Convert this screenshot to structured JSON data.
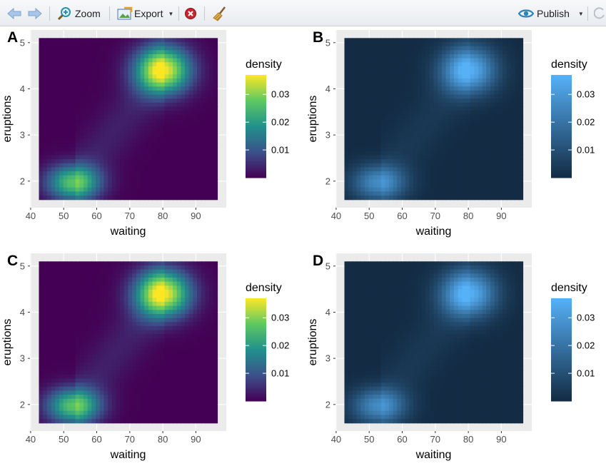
{
  "toolbar": {
    "zoom_label": "Zoom",
    "export_label": "Export",
    "publish_label": "Publish"
  },
  "icons": {
    "back": "back-arrow-icon",
    "forward": "forward-arrow-icon",
    "zoom": "zoom-magnifier-icon",
    "export": "export-image-icon",
    "remove": "remove-plot-icon",
    "clear": "broom-icon",
    "publish": "publish-eye-icon",
    "refresh": "refresh-icon"
  },
  "colors": {
    "viridis": [
      "#440154",
      "#3b528b",
      "#21918c",
      "#5ec962",
      "#fde725"
    ],
    "blues": [
      "#132b43",
      "#56b1f7"
    ]
  },
  "chart_data": [
    {
      "panel": "A",
      "type": "heatmap",
      "palette": "viridis",
      "xlabel": "waiting",
      "ylabel": "eruptions",
      "xticks": [
        40,
        50,
        60,
        70,
        80,
        90
      ],
      "yticks": [
        2,
        3,
        4,
        5
      ],
      "xlim": [
        42.5,
        96.5
      ],
      "ylim": [
        1.6,
        5.1
      ],
      "legend_title": "density",
      "legend_ticks": [
        "0.01",
        "0.02",
        "0.03"
      ],
      "legend_ticks_values": [
        0.01,
        0.02,
        0.03
      ],
      "legend_range": [
        0.0,
        0.037
      ],
      "peaks": [
        {
          "x": 80,
          "y": 4.4,
          "density": 0.037
        },
        {
          "x": 53,
          "y": 1.97,
          "density": 0.027
        }
      ]
    },
    {
      "panel": "B",
      "type": "heatmap",
      "palette": "blues",
      "xlabel": "waiting",
      "ylabel": "eruptions",
      "xticks": [
        40,
        50,
        60,
        70,
        80,
        90
      ],
      "yticks": [
        2,
        3,
        4,
        5
      ],
      "xlim": [
        42.5,
        96.5
      ],
      "ylim": [
        1.6,
        5.1
      ],
      "legend_title": "density",
      "legend_ticks": [
        "0.01",
        "0.02",
        "0.03"
      ],
      "legend_ticks_values": [
        0.01,
        0.02,
        0.03
      ],
      "legend_range": [
        0.0,
        0.037
      ],
      "peaks": [
        {
          "x": 80,
          "y": 4.4,
          "density": 0.037
        },
        {
          "x": 53,
          "y": 1.97,
          "density": 0.027
        }
      ]
    },
    {
      "panel": "C",
      "type": "heatmap",
      "palette": "viridis",
      "xlabel": "waiting",
      "ylabel": "eruptions",
      "xticks": [
        40,
        50,
        60,
        70,
        80,
        90
      ],
      "yticks": [
        2,
        3,
        4,
        5
      ],
      "xlim": [
        42.5,
        96.5
      ],
      "ylim": [
        1.6,
        5.1
      ],
      "legend_title": "density",
      "legend_ticks": [
        "0.01",
        "0.02",
        "0.03"
      ],
      "legend_ticks_values": [
        0.01,
        0.02,
        0.03
      ],
      "legend_range": [
        0.0,
        0.037
      ],
      "peaks": [
        {
          "x": 80,
          "y": 4.4,
          "density": 0.037
        },
        {
          "x": 53,
          "y": 1.97,
          "density": 0.027
        }
      ]
    },
    {
      "panel": "D",
      "type": "heatmap",
      "palette": "blues",
      "xlabel": "waiting",
      "ylabel": "eruptions",
      "xticks": [
        40,
        50,
        60,
        70,
        80,
        90
      ],
      "yticks": [
        2,
        3,
        4,
        5
      ],
      "xlim": [
        42.5,
        96.5
      ],
      "ylim": [
        1.6,
        5.1
      ],
      "legend_title": "density",
      "legend_ticks": [
        "0.01",
        "0.02",
        "0.03"
      ],
      "legend_ticks_values": [
        0.01,
        0.02,
        0.03
      ],
      "legend_range": [
        0.0,
        0.037
      ],
      "peaks": [
        {
          "x": 80,
          "y": 4.4,
          "density": 0.037
        },
        {
          "x": 53,
          "y": 1.97,
          "density": 0.027
        }
      ]
    }
  ]
}
